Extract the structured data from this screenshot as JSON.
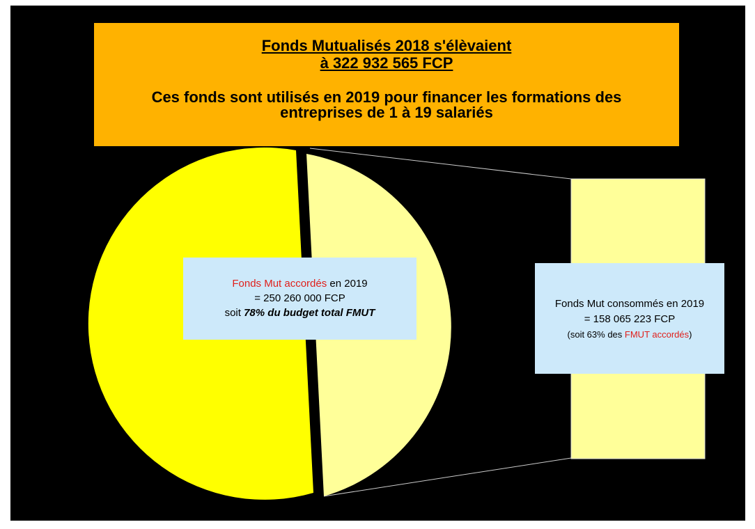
{
  "header": {
    "title_lines": [
      "Fonds Mutualisés 2018 s'élèvaient",
      "à 322 932 565 FCP"
    ],
    "subtitle_lines": [
      "Ces fonds sont utilisés en 2019 pour financer les formations des",
      "entreprises de 1 à 19 salariés"
    ]
  },
  "left_box": {
    "highlight": "Fonds Mut  accordés",
    "rest": "en 2019",
    "amount": "= 250 260 000 FCP",
    "share_prefix": "soit",
    "share_bold": "78% du budget total FMUT"
  },
  "right_box": {
    "line1": "Fonds Mut consommés en  2019",
    "amount": "= 158 065 223 FCP",
    "note_prefix": "(soit 63% des",
    "note_highlight": "FMUT accordés",
    "note_suffix": ")"
  }
}
